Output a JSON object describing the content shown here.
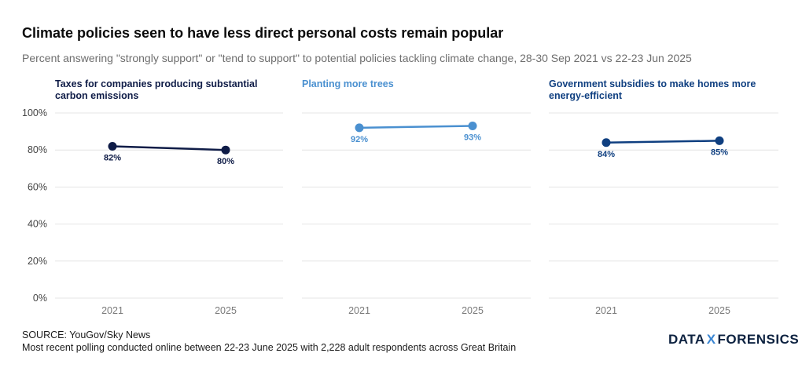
{
  "title": "Climate policies seen to have less direct personal costs remain popular",
  "subtitle": "Percent answering \"strongly support\" or \"tend to support\" to potential policies tackling climate change, 28-30 Sep 2021 vs 22-23 Jun 2025",
  "source_line1": "SOURCE: YouGov/Sky News",
  "source_line2": "Most recent polling conducted online between 22-23 June 2025 with 2,228 adult respondents across Great Britain",
  "logo": {
    "left": "DATA",
    "mid": "X",
    "right": "FORENSICS"
  },
  "colors": {
    "grid": "#e4e4e4",
    "tick": "#7a7a7a",
    "axis_text": "#444444"
  },
  "chart_data": {
    "type": "line",
    "x": [
      "2021",
      "2025"
    ],
    "ylim": [
      0,
      100
    ],
    "yticks": [
      0,
      20,
      40,
      60,
      80,
      100
    ],
    "ytick_labels": [
      "0%",
      "20%",
      "40%",
      "60%",
      "80%",
      "100%"
    ],
    "panels": [
      {
        "title_lines": [
          "Taxes for companies producing substantial",
          "carbon emissions"
        ],
        "color": "#0f1c47",
        "values": [
          82,
          80
        ],
        "labels": [
          "82%",
          "80%"
        ]
      },
      {
        "title_lines": [
          "Planting more trees"
        ],
        "color": "#4a90d0",
        "values": [
          92,
          93
        ],
        "labels": [
          "92%",
          "93%"
        ]
      },
      {
        "title_lines": [
          "Government subsidies to make homes more",
          "energy-efficient"
        ],
        "color": "#0f3f80",
        "values": [
          84,
          85
        ],
        "labels": [
          "84%",
          "85%"
        ]
      }
    ]
  }
}
